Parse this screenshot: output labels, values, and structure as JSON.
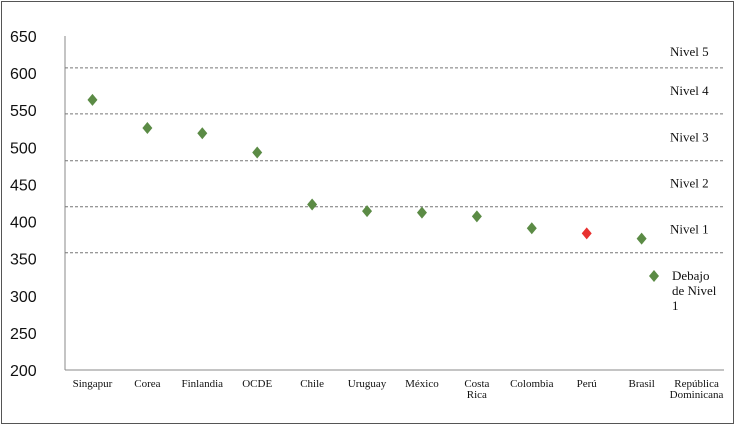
{
  "chart_data": {
    "type": "scatter",
    "title": "",
    "xlabel": "",
    "ylabel": "",
    "ylim": [
      200,
      650
    ],
    "yticks": [
      "650",
      "600",
      "550",
      "500",
      "450",
      "400",
      "350",
      "300",
      "250",
      "200"
    ],
    "categories": [
      [
        "Singapur"
      ],
      [
        "Corea"
      ],
      [
        "Finlandia"
      ],
      [
        "OCDE"
      ],
      [
        "Chile"
      ],
      [
        "Uruguay"
      ],
      [
        "México"
      ],
      [
        "Costa",
        "Rica"
      ],
      [
        "Colombia"
      ],
      [
        "Perú"
      ],
      [
        "Brasil"
      ],
      [
        "República",
        "Dominicana"
      ]
    ],
    "values": [
      564,
      526,
      519,
      493,
      423,
      414,
      412,
      407,
      391,
      384,
      377,
      null
    ],
    "highlight": {
      "index": 9,
      "color": "#e8312f"
    },
    "marker_color": "#5b8b45",
    "level_thresholds": [
      607,
      545,
      482,
      420,
      358
    ],
    "levels": [
      "Nivel 5",
      "Nivel 4",
      "Nivel 3",
      "Nivel 2",
      "Nivel 1"
    ],
    "legend": {
      "lines": [
        "Debajo",
        "de Nivel",
        "1"
      ]
    }
  }
}
